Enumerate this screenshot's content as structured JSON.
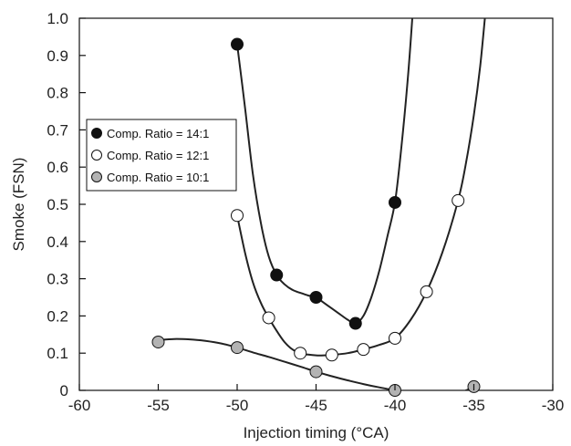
{
  "chart_data": {
    "type": "scatter",
    "title": "",
    "xlabel": "Injection timing (°CA)",
    "ylabel": "Smoke (FSN)",
    "xlim": [
      -60,
      -30
    ],
    "ylim": [
      0,
      1.0
    ],
    "xticks": [
      -60,
      -55,
      -50,
      -45,
      -40,
      -35,
      -30
    ],
    "yticks": [
      0,
      0.1,
      0.2,
      0.3,
      0.4,
      0.5,
      0.6,
      0.7,
      0.8,
      0.9,
      1.0
    ],
    "xtick_labels": [
      "-60",
      "-55",
      "-50",
      "-45",
      "-40",
      "-35",
      "-30"
    ],
    "ytick_labels": [
      "0",
      "0.1",
      "0.2",
      "0.3",
      "0.4",
      "0.5",
      "0.6",
      "0.7",
      "0.8",
      "0.9",
      "1.0"
    ],
    "grid": false,
    "legend_position": "upper-left",
    "series": [
      {
        "name": "Comp. Ratio = 14:1",
        "marker_color": "#111111",
        "x": [
          -50,
          -47.5,
          -45,
          -42.5,
          -40
        ],
        "y": [
          0.93,
          0.31,
          0.25,
          0.18,
          0.505
        ],
        "curve_x": [
          -50,
          -49.5,
          -49,
          -48.5,
          -48,
          -47.5,
          -47,
          -46.5,
          -46,
          -45.5,
          -45,
          -44.5,
          -44,
          -43.5,
          -43,
          -42.5,
          -42,
          -41.5,
          -41,
          -40.5,
          -40,
          -39.6,
          -39.2,
          -38.9
        ],
        "curve_y": [
          0.93,
          0.76,
          0.58,
          0.45,
          0.36,
          0.31,
          0.285,
          0.27,
          0.262,
          0.255,
          0.25,
          0.235,
          0.22,
          0.205,
          0.19,
          0.18,
          0.2,
          0.25,
          0.32,
          0.41,
          0.505,
          0.65,
          0.83,
          1.0
        ]
      },
      {
        "name": "Comp. Ratio = 12:1",
        "marker_color": "#ffffff",
        "x": [
          -50,
          -48,
          -46,
          -44,
          -42,
          -40,
          -38,
          -36
        ],
        "y": [
          0.47,
          0.195,
          0.1,
          0.095,
          0.11,
          0.14,
          0.265,
          0.51
        ],
        "curve_x": [
          -50,
          -49.5,
          -49,
          -48.5,
          -48,
          -47.5,
          -47,
          -46.5,
          -46,
          -45.5,
          -45,
          -44.5,
          -44,
          -43,
          -42,
          -41,
          -40,
          -39,
          -38,
          -37,
          -36,
          -35.5,
          -35,
          -34.6,
          -34.3
        ],
        "curve_y": [
          0.47,
          0.37,
          0.29,
          0.235,
          0.195,
          0.16,
          0.13,
          0.11,
          0.1,
          0.096,
          0.094,
          0.094,
          0.095,
          0.1,
          0.11,
          0.122,
          0.14,
          0.19,
          0.265,
          0.37,
          0.51,
          0.61,
          0.74,
          0.87,
          1.0
        ]
      },
      {
        "name": "Comp. Ratio = 10:1",
        "marker_color": "#b3b3b3",
        "x": [
          -55,
          -50,
          -45,
          -40,
          -35
        ],
        "y": [
          0.13,
          0.115,
          0.05,
          0.0,
          0.01
        ],
        "curve_x": [
          -55,
          -54,
          -53,
          -52,
          -51,
          -50,
          -49,
          -48,
          -47,
          -46,
          -45,
          -44,
          -43,
          -42,
          -41,
          -40,
          -39.5
        ],
        "curve_y": [
          0.135,
          0.138,
          0.137,
          0.133,
          0.126,
          0.115,
          0.102,
          0.09,
          0.077,
          0.064,
          0.05,
          0.038,
          0.027,
          0.017,
          0.008,
          0.0,
          -0.005
        ],
        "curve2_x": [
          -36.6,
          -36,
          -35.5,
          -35,
          -34.8
        ],
        "curve2_y": [
          -0.01,
          -0.006,
          0.0,
          0.01,
          0.015
        ]
      }
    ]
  }
}
